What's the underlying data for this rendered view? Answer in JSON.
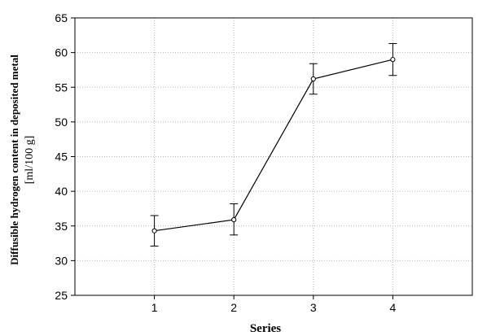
{
  "chart_data": {
    "type": "line",
    "title": "",
    "xlabel": "Series",
    "ylabel": "Diffusible hydrogen content in deposited metal",
    "ylabel_unit": "[ml/100 g]",
    "x": [
      1,
      2,
      3,
      4
    ],
    "x_ticks": [
      "1",
      "2",
      "3",
      "4"
    ],
    "y_ticks": [
      "25",
      "30",
      "35",
      "40",
      "45",
      "50",
      "55",
      "60",
      "65"
    ],
    "ylim": [
      25,
      65
    ],
    "xlim": [
      0,
      5
    ],
    "grid": true,
    "grid_style": "dotted",
    "error_bars": true,
    "series": [
      {
        "values": [
          34.3,
          35.9,
          56.2,
          59.0
        ],
        "lower": [
          32.1,
          33.7,
          54.0,
          56.7
        ],
        "upper": [
          36.5,
          38.2,
          58.4,
          61.3
        ],
        "marker": "open-circle",
        "color": "#000000"
      }
    ]
  }
}
